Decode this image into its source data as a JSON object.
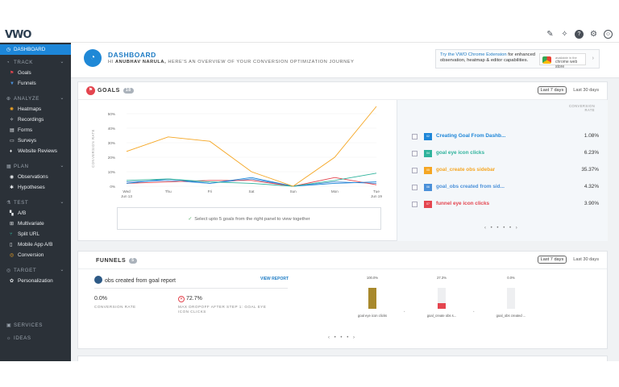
{
  "app": {
    "logo": "VWO"
  },
  "topbar": {
    "icons": [
      "notifications-icon",
      "activity-icon",
      "help-icon",
      "settings-icon",
      "user-icon"
    ]
  },
  "sidebar": {
    "dashboard": "DASHBOARD",
    "track": {
      "label": "TRACK",
      "items": [
        "Goals",
        "Funnels"
      ]
    },
    "analyze": {
      "label": "ANALYZE",
      "items": [
        "Heatmaps",
        "Recordings",
        "Forms",
        "Surveys",
        "Website Reviews"
      ]
    },
    "plan": {
      "label": "PLAN",
      "items": [
        "Observations",
        "Hypotheses"
      ]
    },
    "test": {
      "label": "TEST",
      "items": [
        "A/B",
        "Multivariate",
        "Split URL",
        "Mobile App A/B",
        "Conversion"
      ]
    },
    "target": {
      "label": "TARGET",
      "items": [
        "Personalization"
      ]
    },
    "services": "SERVICES",
    "ideas": "IDEAS"
  },
  "header": {
    "title": "DASHBOARD",
    "greeting_prefix": "HI",
    "user_name": "ANUBHAV NARULA,",
    "greeting_suffix": "HERE'S AN OVERVIEW OF YOUR CONVERSION OPTIMIZATION JOURNEY",
    "promo_link": "Try the VWO Chrome Extension",
    "promo_text1": " for enhanced",
    "promo_text2": "observation, heatmap & editor capabilities.",
    "promo_badge_small": "available in the",
    "promo_badge": "chrome web store"
  },
  "goals": {
    "title": "GOALS",
    "count": "18",
    "range_selected": "Last 7 days",
    "range_other": "Last 30 days",
    "hint": "Select upto 5 goals from the right panel to view together",
    "panel_header": "CONVERSION RATE",
    "rows": [
      {
        "num": "02",
        "name": "Creating Goal From Dashb...",
        "pct": "1.08%",
        "color": "#1d86d8"
      },
      {
        "num": "04",
        "name": "goal eye icon clicks",
        "pct": "6.23%",
        "color": "#2fb39c"
      },
      {
        "num": "05",
        "name": "goal_create obs sidebar",
        "pct": "35.37%",
        "color": "#f5a623"
      },
      {
        "num": "06",
        "name": "goal_obs created from sid...",
        "pct": "4.32%",
        "color": "#4a90d9"
      },
      {
        "num": "07",
        "name": "funnel eye icon clicks",
        "pct": "3.90%",
        "color": "#e4454f"
      }
    ],
    "pager": "‹ • • • • ›"
  },
  "chart_data": {
    "type": "line",
    "ylabel": "CONVERSION RATE",
    "yticks": [
      "50%",
      "40%",
      "30%",
      "20%",
      "10%",
      "0%"
    ],
    "ylim": [
      0,
      55
    ],
    "categories": [
      "Wed Jun 13",
      "Thu",
      "Fri",
      "Sat",
      "Sun",
      "Mon",
      "Tue Jun 19"
    ],
    "series": [
      {
        "color": "#f5a623",
        "values": [
          24,
          34,
          31,
          10,
          0,
          20,
          55
        ]
      },
      {
        "color": "#2fb39c",
        "values": [
          4,
          5,
          3,
          2,
          0,
          4,
          9
        ]
      },
      {
        "color": "#1d86d8",
        "values": [
          2,
          5,
          2,
          6,
          0,
          2,
          3
        ]
      },
      {
        "color": "#e4454f",
        "values": [
          2,
          3,
          4,
          4,
          0,
          6,
          1
        ]
      },
      {
        "color": "#4a90d9",
        "values": [
          3,
          4,
          2,
          5,
          0,
          3,
          2
        ]
      }
    ]
  },
  "funnels": {
    "title": "FUNNELS",
    "count": "5",
    "range_selected": "Last 7 days",
    "range_other": "Last 30 days",
    "funnel_name": "obs created from goal report",
    "view_report": "VIEW REPORT",
    "conv_value": "0.0%",
    "conv_label": "CONVERSION RATE",
    "drop_value": "72.7%",
    "drop_label": "MAX DROPOFF AFTER STEP 1: GOAL EYE ICON CLICKS",
    "steps": [
      {
        "pct": "100.0%",
        "label": "goal eye icon clicks",
        "value": 100,
        "color": "#a8892c"
      },
      {
        "pct": "27.3%",
        "label": "goal_create obs s...",
        "value": 27.3,
        "color": "#e4454f"
      },
      {
        "pct": "0.0%",
        "label": "goal_obs created ...",
        "value": 0,
        "color": "#e4454f"
      }
    ],
    "pager": "‹ • • • ›"
  }
}
